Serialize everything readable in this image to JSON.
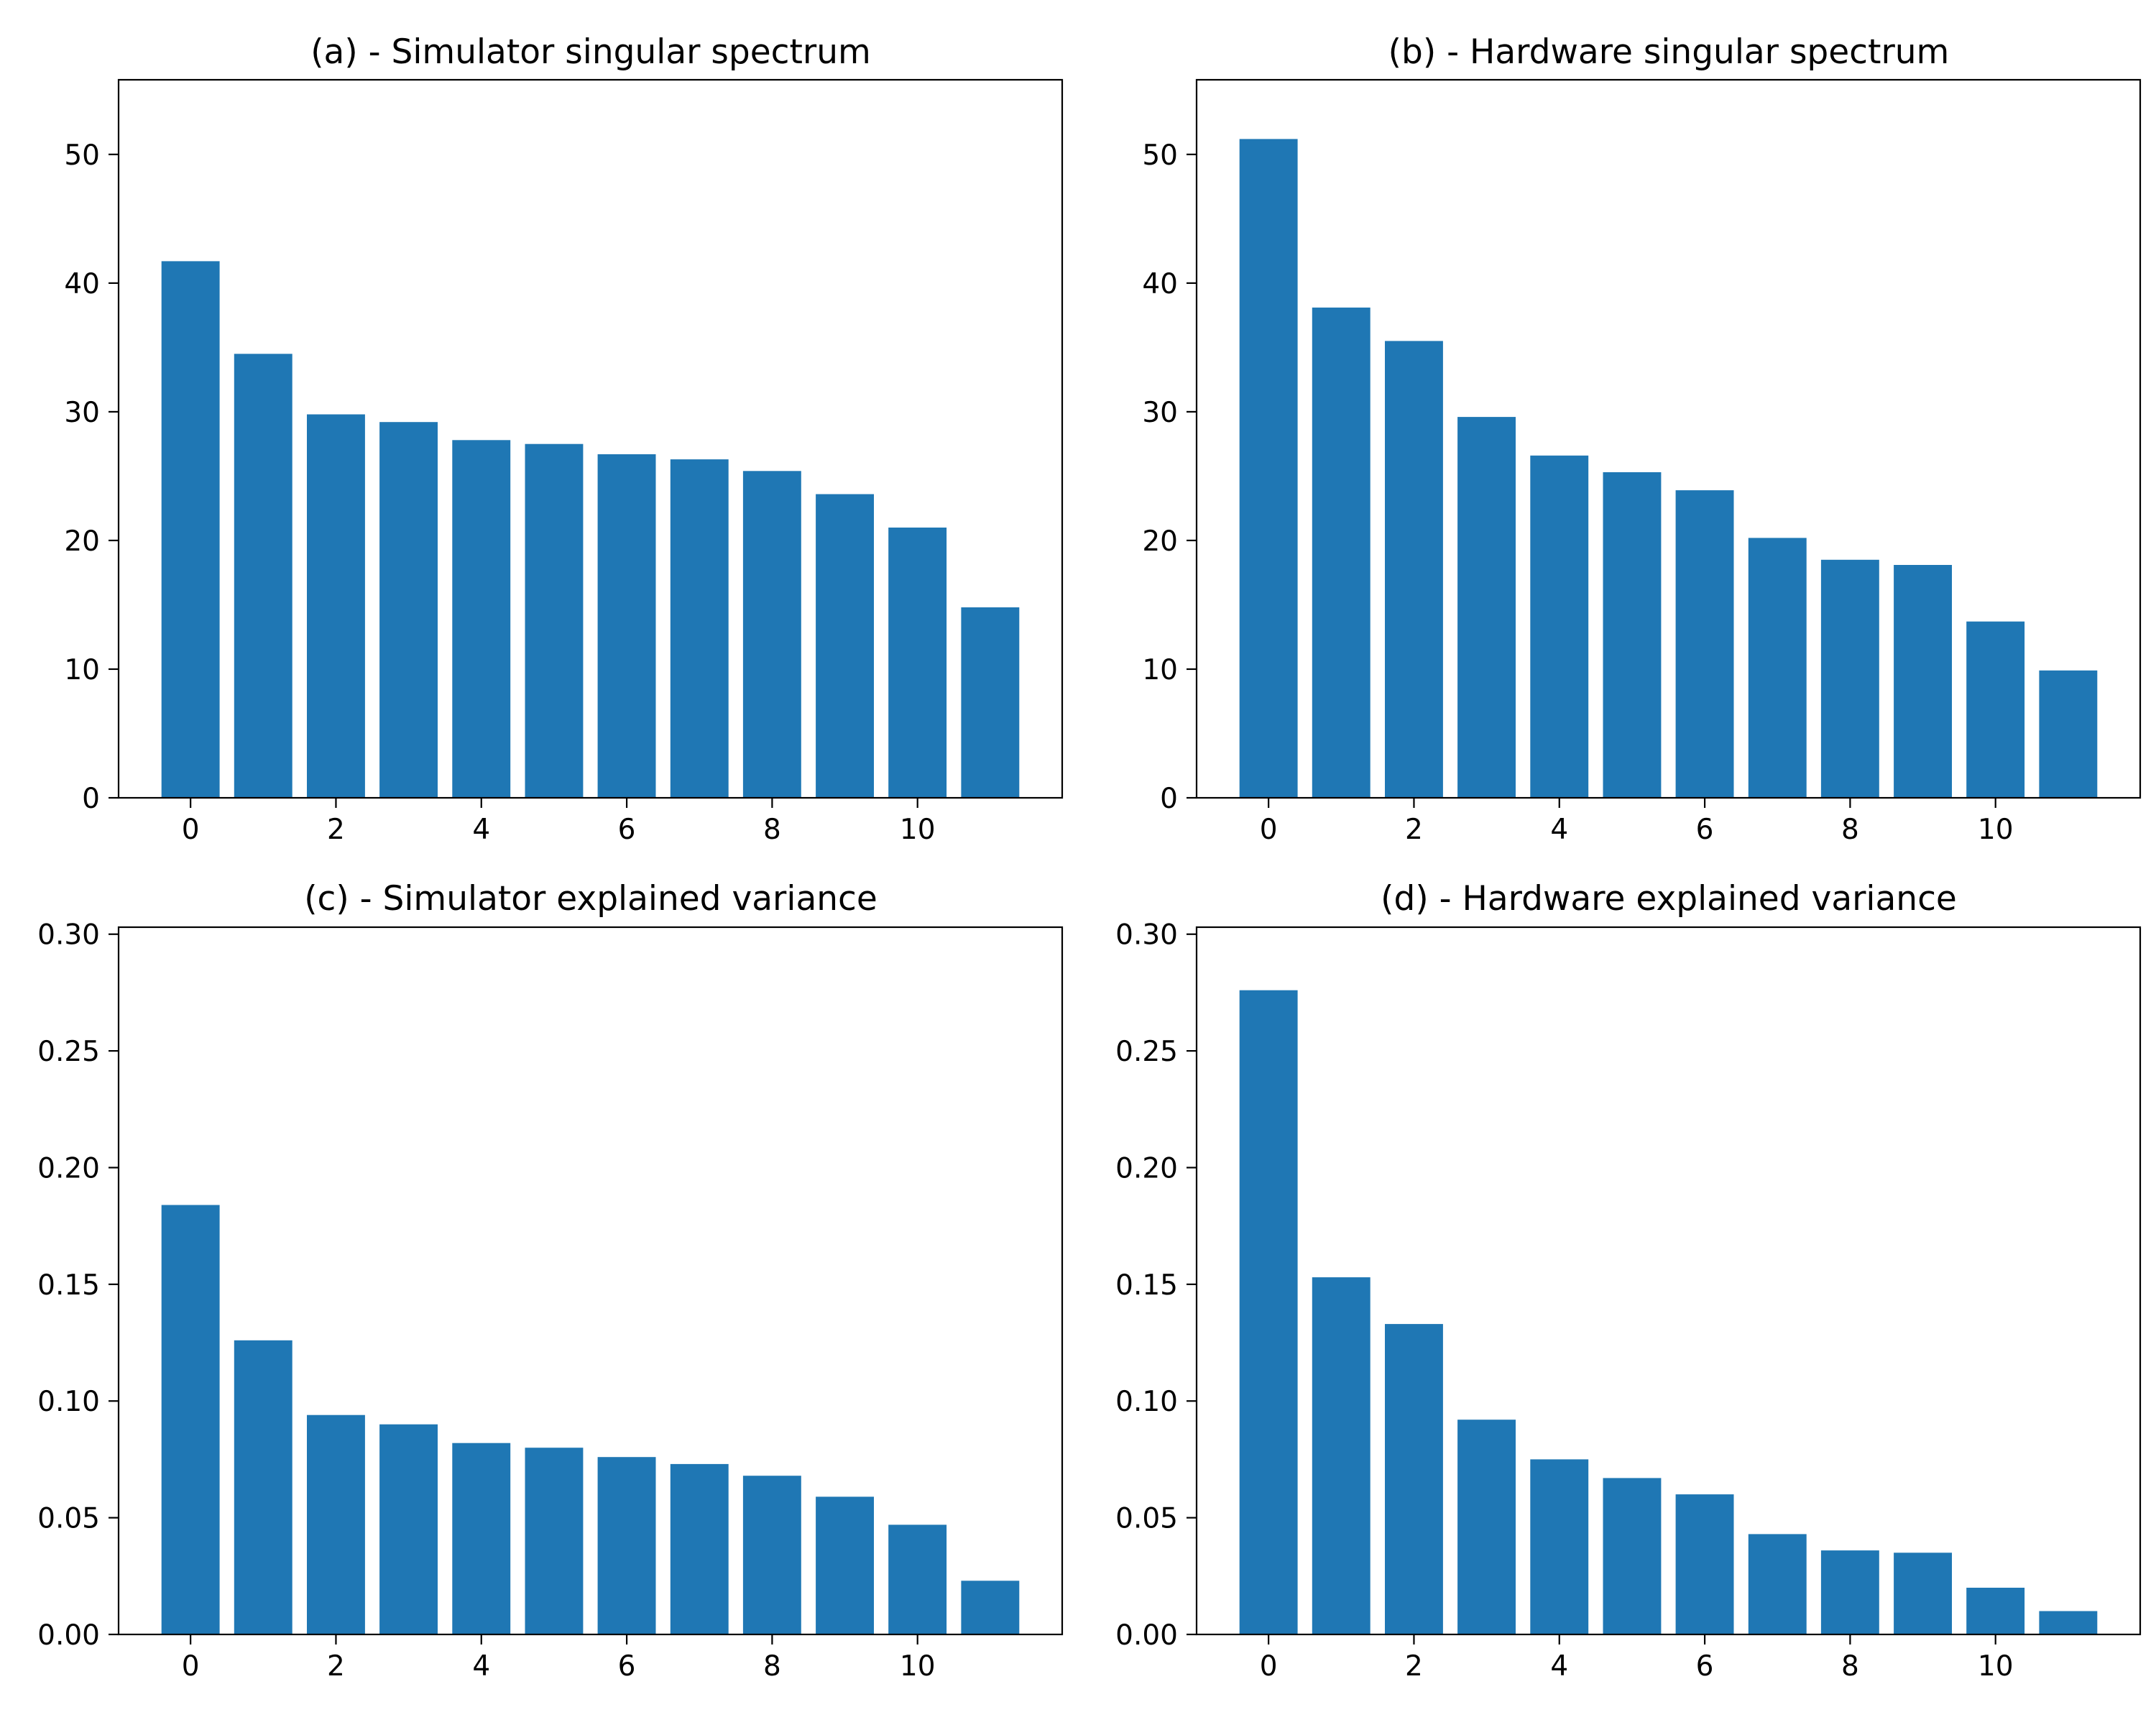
{
  "figure": {
    "background": "#ffffff",
    "bar_color": "#1f77b4",
    "axis_color": "#000000",
    "text_color": "#000000"
  },
  "chart_data": [
    {
      "id": "a",
      "type": "bar",
      "title": "(a) - Simulator singular spectrum",
      "xlabel": "",
      "ylabel": "",
      "grid": false,
      "categories": [
        0,
        1,
        2,
        3,
        4,
        5,
        6,
        7,
        8,
        9,
        10,
        11
      ],
      "values": [
        41.7,
        34.5,
        29.8,
        29.2,
        27.8,
        27.5,
        26.7,
        26.3,
        25.4,
        23.6,
        21.0,
        14.8
      ],
      "bar_width": 0.8,
      "xlim": [
        -0.99,
        11.99
      ],
      "ylim": [
        0,
        55.8
      ],
      "yticks": [
        0,
        10,
        20,
        30,
        40,
        50
      ],
      "yticklabels": [
        "0",
        "10",
        "20",
        "30",
        "40",
        "50"
      ],
      "xticks": [
        0,
        2,
        4,
        6,
        8,
        10
      ],
      "xticklabels": [
        "0",
        "2",
        "4",
        "6",
        "8",
        "10"
      ]
    },
    {
      "id": "b",
      "type": "bar",
      "title": "(b) - Hardware singular spectrum",
      "xlabel": "",
      "ylabel": "",
      "grid": false,
      "categories": [
        0,
        1,
        2,
        3,
        4,
        5,
        6,
        7,
        8,
        9,
        10,
        11
      ],
      "values": [
        51.2,
        38.1,
        35.5,
        29.6,
        26.6,
        25.3,
        23.9,
        20.2,
        18.5,
        18.1,
        13.7,
        9.9
      ],
      "bar_width": 0.8,
      "xlim": [
        -0.99,
        11.99
      ],
      "ylim": [
        0,
        55.8
      ],
      "yticks": [
        0,
        10,
        20,
        30,
        40,
        50
      ],
      "yticklabels": [
        "0",
        "10",
        "20",
        "30",
        "40",
        "50"
      ],
      "xticks": [
        0,
        2,
        4,
        6,
        8,
        10
      ],
      "xticklabels": [
        "0",
        "2",
        "4",
        "6",
        "8",
        "10"
      ]
    },
    {
      "id": "c",
      "type": "bar",
      "title": "(c) - Simulator explained variance",
      "xlabel": "",
      "ylabel": "",
      "grid": false,
      "categories": [
        0,
        1,
        2,
        3,
        4,
        5,
        6,
        7,
        8,
        9,
        10,
        11
      ],
      "values": [
        0.184,
        0.126,
        0.094,
        0.09,
        0.082,
        0.08,
        0.076,
        0.073,
        0.068,
        0.059,
        0.047,
        0.023
      ],
      "bar_width": 0.8,
      "xlim": [
        -0.99,
        11.99
      ],
      "ylim": [
        0,
        0.303
      ],
      "yticks": [
        0,
        0.05,
        0.1,
        0.15,
        0.2,
        0.25,
        0.3
      ],
      "yticklabels": [
        "0.00",
        "0.05",
        "0.10",
        "0.15",
        "0.20",
        "0.25",
        "0.30"
      ],
      "xticks": [
        0,
        2,
        4,
        6,
        8,
        10
      ],
      "xticklabels": [
        "0",
        "2",
        "4",
        "6",
        "8",
        "10"
      ]
    },
    {
      "id": "d",
      "type": "bar",
      "title": "(d) - Hardware explained variance",
      "xlabel": "",
      "ylabel": "",
      "grid": false,
      "categories": [
        0,
        1,
        2,
        3,
        4,
        5,
        6,
        7,
        8,
        9,
        10,
        11
      ],
      "values": [
        0.276,
        0.153,
        0.133,
        0.092,
        0.075,
        0.067,
        0.06,
        0.043,
        0.036,
        0.035,
        0.02,
        0.01
      ],
      "bar_width": 0.8,
      "xlim": [
        -0.99,
        11.99
      ],
      "ylim": [
        0,
        0.303
      ],
      "yticks": [
        0,
        0.05,
        0.1,
        0.15,
        0.2,
        0.25,
        0.3
      ],
      "yticklabels": [
        "0.00",
        "0.05",
        "0.10",
        "0.15",
        "0.20",
        "0.25",
        "0.30"
      ],
      "xticks": [
        0,
        2,
        4,
        6,
        8,
        10
      ],
      "xticklabels": [
        "0",
        "2",
        "4",
        "6",
        "8",
        "10"
      ]
    }
  ]
}
